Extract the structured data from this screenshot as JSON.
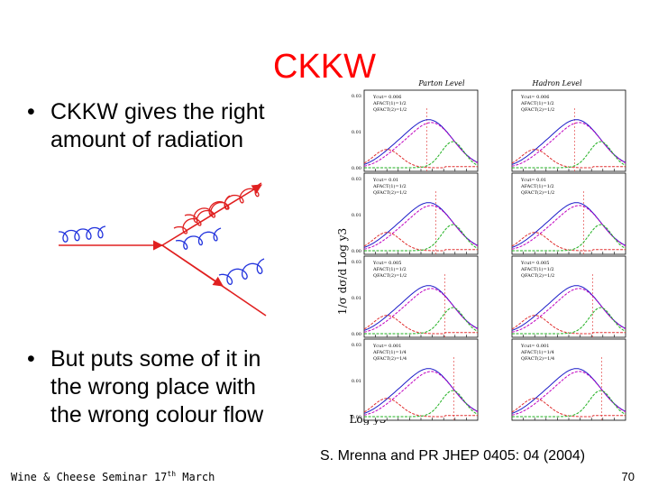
{
  "slide": {
    "title": "CKKW",
    "bullets": [
      {
        "marker": "•",
        "text": "CKKW gives the right\namount of radiation"
      },
      {
        "marker": "•",
        "text": "But puts some of it in\nthe wrong place with\nthe wrong colour flow"
      }
    ],
    "citation": "S. Mrenna and PR JHEP 0405: 04 (2004)",
    "footer_text": "Wine & Cheese Seminar 17",
    "footer_sup": "th",
    "footer_tail": " March",
    "page_number": "70"
  },
  "figure": {
    "column_headers": [
      "Parton Level",
      "Hadron Level"
    ],
    "ylabel": "1/σ dσ/d Log y3",
    "xlabel": "Log y3",
    "ytick_labels": [
      "0.03",
      "0.01",
      "0.00"
    ],
    "legend_rows": [
      [
        "Ycut= 0.006",
        "AFACT(1)=1/2",
        "QFACT(2)=1/2"
      ],
      [
        "Ycut= 0.01",
        "AFACT(1)=1/2",
        "QFACT(2)=1/2"
      ],
      [
        "Ycut= 0.005",
        "AFACT(1)=1/2",
        "QFACT(2)=1/2"
      ],
      [
        "Ycut= 0.001",
        "AFACT(1)=1/4",
        "QFACT(2)=1/4"
      ]
    ],
    "colors": {
      "total": "#1b1bc8",
      "jets_low": "#e03030",
      "jets_high": "#20b020",
      "ref": "#c000c0"
    }
  },
  "diagram": {
    "colors": {
      "quark": "#e02020",
      "gluon": "#2233dd",
      "gluon_alt": "#e02020"
    }
  }
}
